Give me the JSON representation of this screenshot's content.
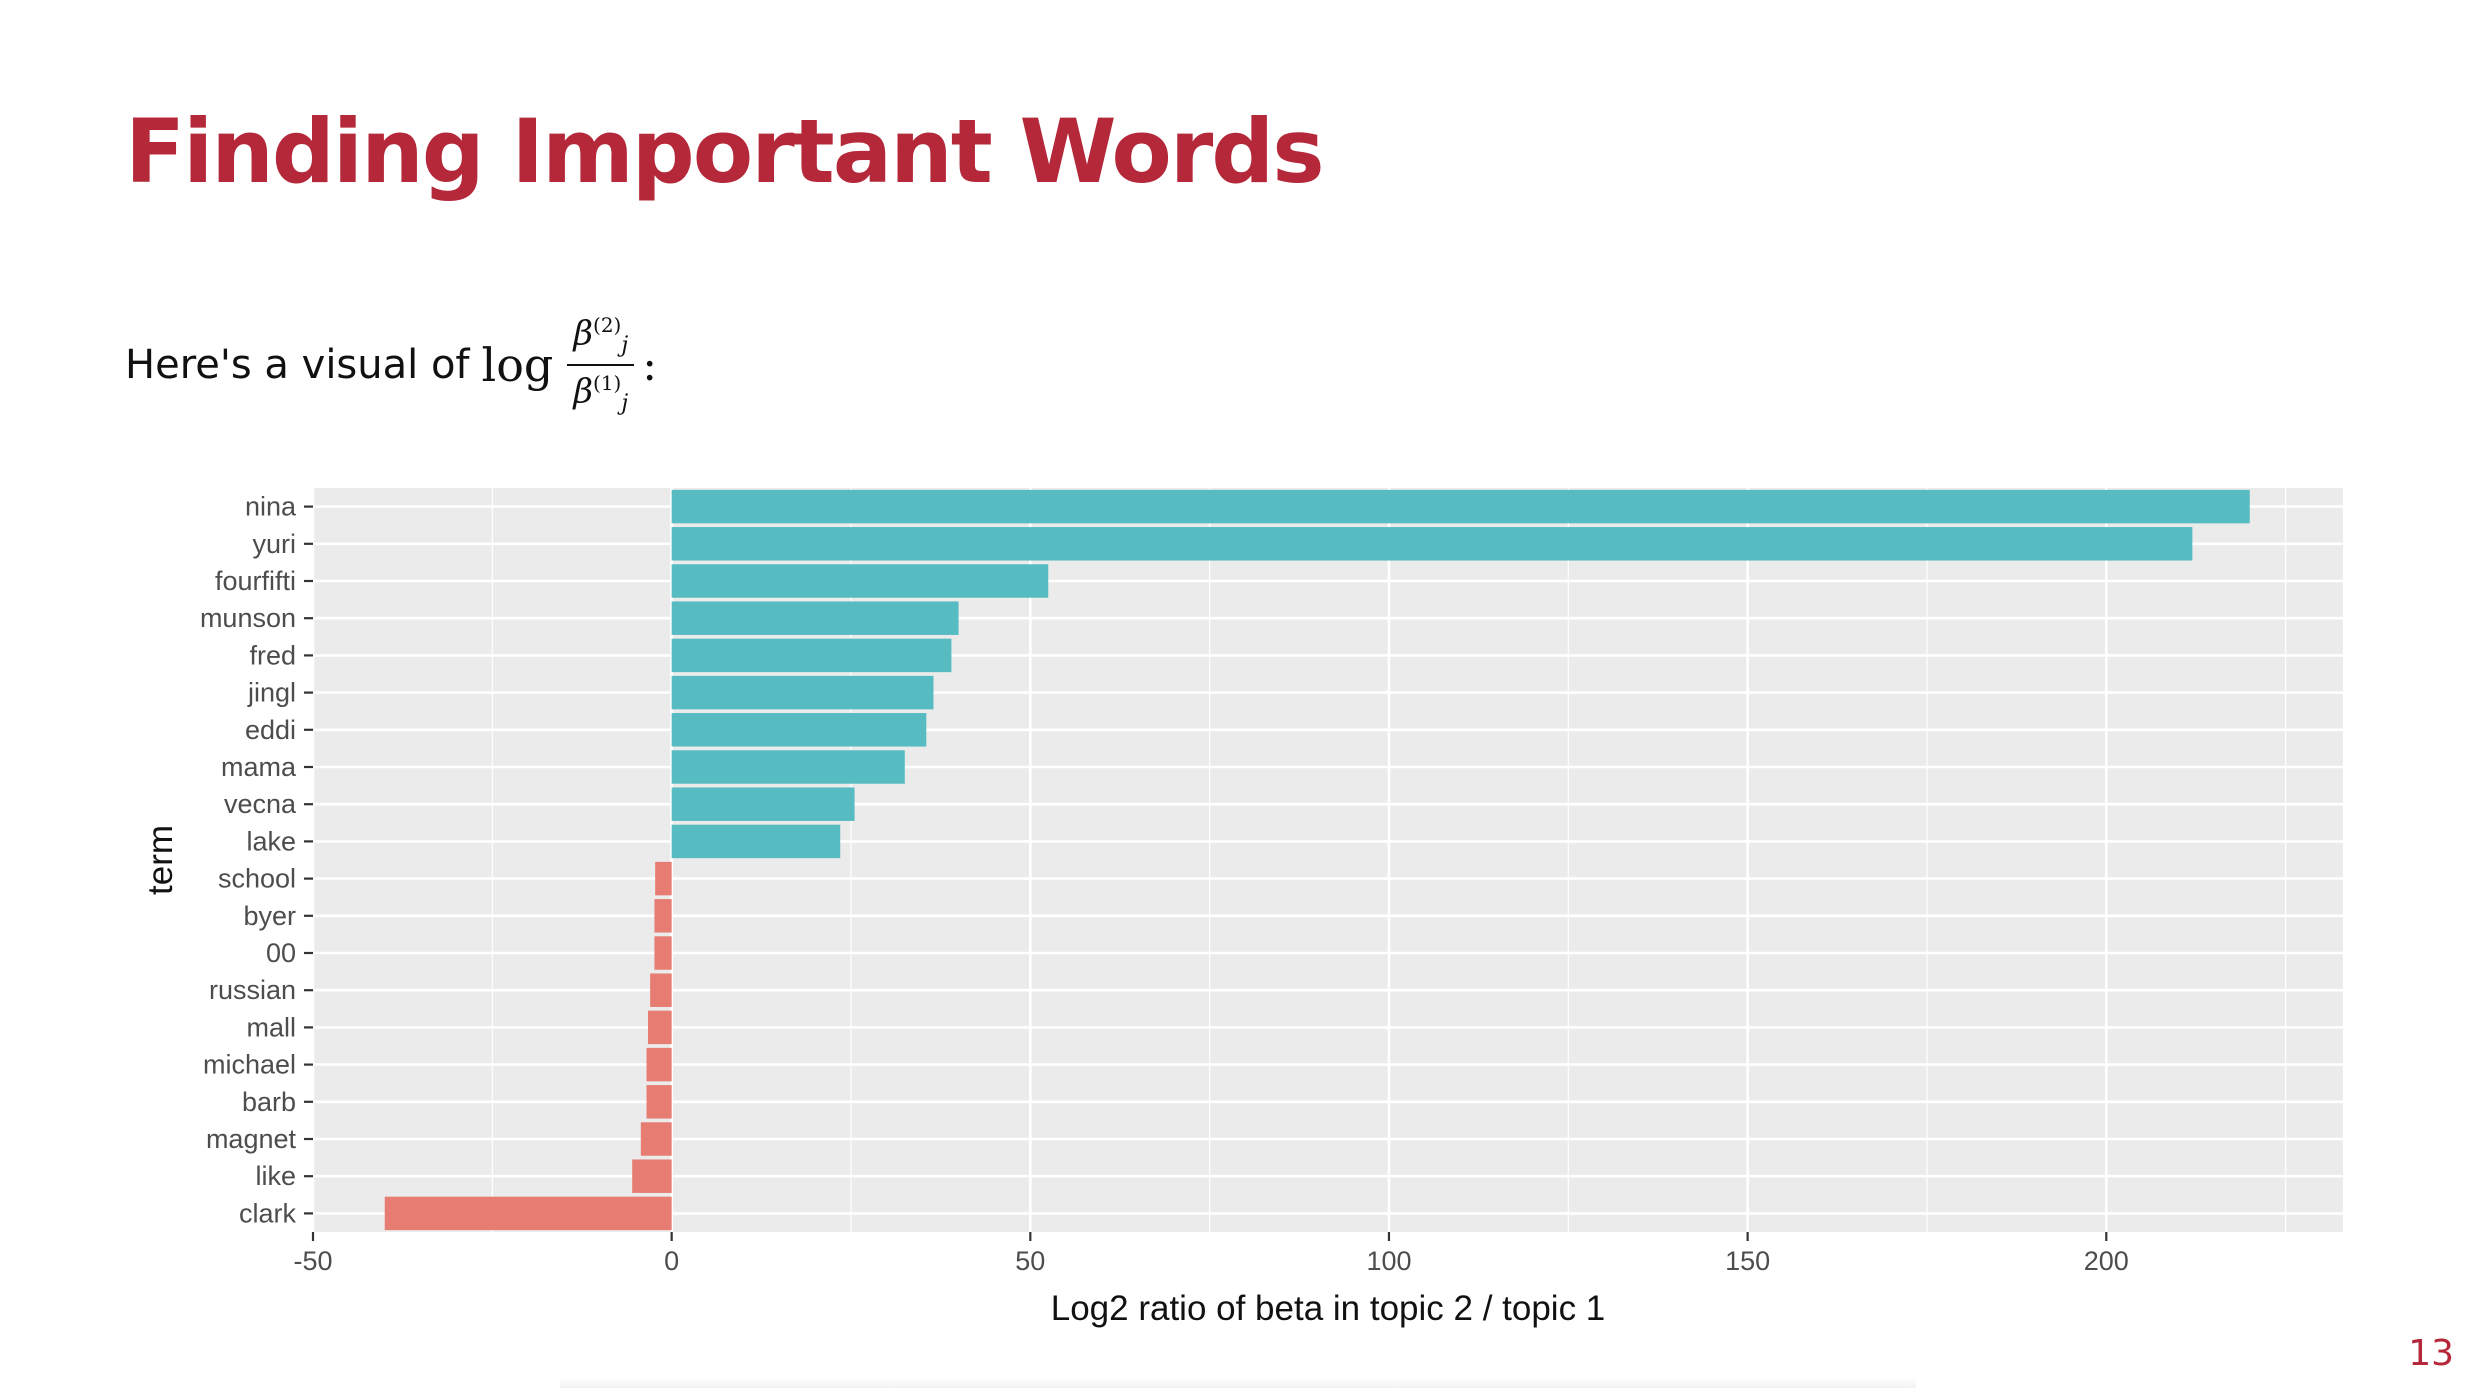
{
  "slide": {
    "title": "Finding Important Words",
    "intro_text": "Here's a visual of",
    "formula": {
      "op": "log",
      "numerator": "β",
      "numerator_sup": "(2)",
      "numerator_sub": "j",
      "denominator": "β",
      "denominator_sup": "(1)",
      "denominator_sub": "j",
      "trailing": ":"
    },
    "page_number": "13"
  },
  "colors": {
    "positive": "#56bcc2",
    "negative": "#e77c72",
    "panel": "#ebebeb",
    "grid_major": "#ffffff",
    "title": "#b5283a"
  },
  "chart_data": {
    "type": "bar",
    "orientation": "horizontal",
    "title": "",
    "xlabel": "Log2 ratio of beta in topic 2 / topic 1",
    "ylabel": "term",
    "xlim": [
      -50,
      233
    ],
    "x_ticks": [
      -50,
      0,
      50,
      100,
      150,
      200
    ],
    "grid": true,
    "categories": [
      "nina",
      "yuri",
      "fourfifti",
      "munson",
      "fred",
      "jingl",
      "eddi",
      "mama",
      "vecna",
      "lake",
      "school",
      "byer",
      "00",
      "russian",
      "mall",
      "michael",
      "barb",
      "magnet",
      "like",
      "clark"
    ],
    "values": [
      220,
      212,
      52.5,
      40,
      39,
      36.5,
      35.5,
      32.5,
      25.5,
      23.5,
      -2.3,
      -2.4,
      -2.4,
      -3,
      -3.3,
      -3.5,
      -3.5,
      -4.3,
      -5.5,
      -40
    ]
  }
}
